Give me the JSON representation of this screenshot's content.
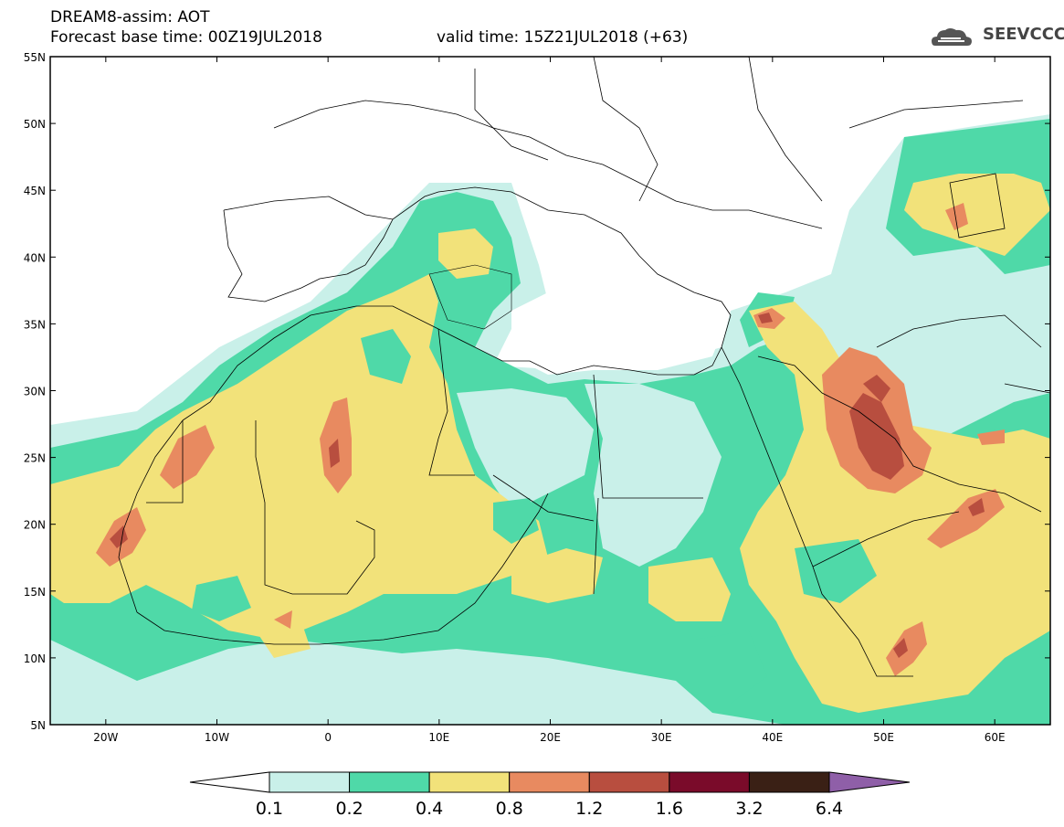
{
  "title": {
    "line1": "DREAM8-assim: AOT",
    "line2": "Forecast base time: 00Z19JUL2018",
    "valid": "valid time: 15Z21JUL2018 (+63)"
  },
  "logo": {
    "text": "SEEVCCC",
    "icon": "cloud-icon"
  },
  "map": {
    "extent": {
      "lon": [
        -25,
        65
      ],
      "lat": [
        5,
        55
      ]
    },
    "lat_ticks": [
      "5N",
      "10N",
      "15N",
      "20N",
      "25N",
      "30N",
      "35N",
      "40N",
      "45N",
      "50N",
      "55N"
    ],
    "lon_ticks": [
      "20W",
      "10W",
      "0",
      "10E",
      "20E",
      "30E",
      "40E",
      "50E",
      "60E"
    ]
  },
  "colorbar": {
    "labels": [
      "0.1",
      "0.2",
      "0.4",
      "0.8",
      "1.2",
      "1.6",
      "3.2",
      "6.4"
    ],
    "colors": [
      "#ffffff",
      "#c9f0e9",
      "#4fd9a8",
      "#f2e27a",
      "#e88a60",
      "#b84e3f",
      "#7a0b2a",
      "#3a2015",
      "#8f5fa8"
    ]
  }
}
